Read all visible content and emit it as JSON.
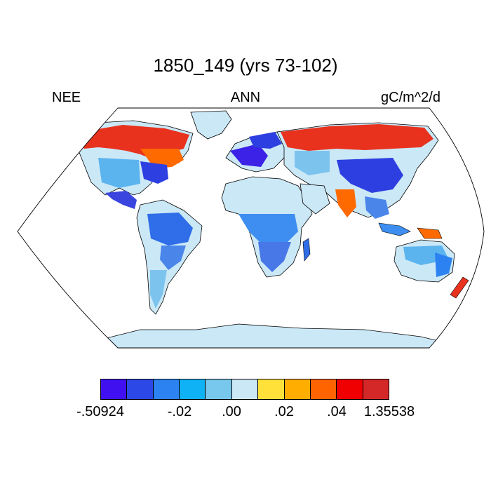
{
  "title": "1850_149 (yrs 73-102)",
  "left_label": "NEE",
  "center_label": "ANN",
  "right_label": "gC/m^2/d",
  "colorbar": {
    "colors": [
      "#4010f0",
      "#2c48e6",
      "#2d82f2",
      "#0fb2f5",
      "#78c8ee",
      "#cbe8f7",
      "#ffe13a",
      "#ffad00",
      "#ff6400",
      "#f00000",
      "#d42828"
    ],
    "tick_labels": [
      "-.50924",
      "-.02",
      ".00",
      ".02",
      ".04",
      "1.35538"
    ]
  },
  "map_colors": {
    "ocean": "#ffffff",
    "land_base": "#cbe8f7",
    "coast": "#000000"
  }
}
